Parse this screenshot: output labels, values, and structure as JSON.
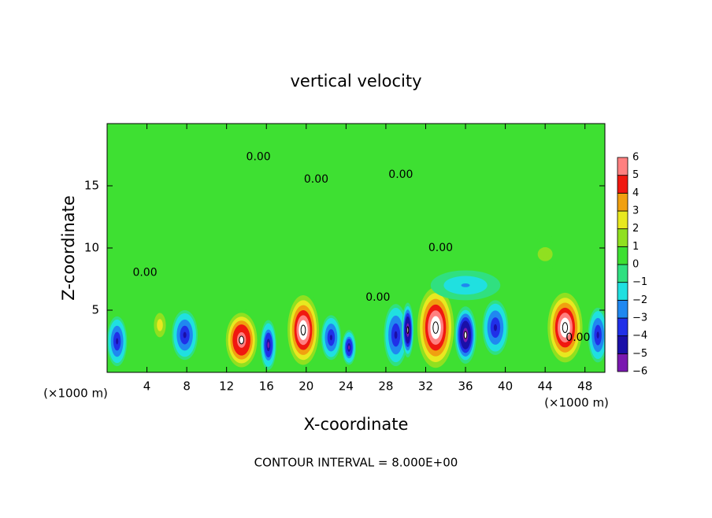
{
  "chart_data": {
    "type": "contour",
    "title": "vertical velocity",
    "x_label": "X-coordinate",
    "y_label": "Z-coordinate",
    "x_unit_left": "(×1000 m)",
    "x_unit_right": "(×1000 m)",
    "footer": "CONTOUR INTERVAL = 8.000E+00",
    "xlim": [
      0,
      50
    ],
    "xticks": [
      4,
      8,
      12,
      16,
      20,
      24,
      28,
      32,
      36,
      40,
      44,
      48
    ],
    "ylim": [
      0,
      20
    ],
    "yticks": [
      5,
      10,
      15
    ],
    "background_color": "#3ee032",
    "colorbar": {
      "levels": [
        -6,
        -5,
        -4,
        -3,
        -2,
        -1,
        0,
        1,
        2,
        3,
        4,
        5,
        6
      ],
      "level_labels": [
        {
          "value": -6,
          "label": "−6"
        },
        {
          "value": -5,
          "label": "−5"
        },
        {
          "value": -4,
          "label": "−4"
        },
        {
          "value": -3,
          "label": "−3"
        },
        {
          "value": -2,
          "label": "−2"
        },
        {
          "value": -1,
          "label": "−1"
        },
        0,
        1,
        2,
        3,
        4,
        5,
        6
      ],
      "colors": [
        "#7a18b0",
        "#1a0fa8",
        "#2030e8",
        "#2088f0",
        "#20e0e0",
        "#30e080",
        "#3ee032",
        "#90e020",
        "#e8e820",
        "#f0a010",
        "#f01810",
        "#ff8080"
      ],
      "over_color": "#ffffff"
    },
    "cells": [
      {
        "x": 1,
        "z": 2.5,
        "w": 2,
        "h": 4,
        "value": -4
      },
      {
        "x": 5.3,
        "z": 3.8,
        "w": 1.6,
        "h": 2.6,
        "value": 3
      },
      {
        "x": 7.8,
        "z": 3,
        "w": 2.6,
        "h": 4,
        "value": -4.5
      },
      {
        "x": 13.5,
        "z": 2.6,
        "w": 3.6,
        "h": 5,
        "value": 6.5
      },
      {
        "x": 16.2,
        "z": 2.2,
        "w": 1.6,
        "h": 4,
        "value": -5
      },
      {
        "x": 19.7,
        "z": 3.4,
        "w": 3.6,
        "h": 6.4,
        "value": 7
      },
      {
        "x": 22.5,
        "z": 2.8,
        "w": 2,
        "h": 3.6,
        "value": -4
      },
      {
        "x": 24.3,
        "z": 2,
        "w": 1.4,
        "h": 2.8,
        "value": -5
      },
      {
        "x": 29,
        "z": 3,
        "w": 2.4,
        "h": 5,
        "value": -4
      },
      {
        "x": 30.2,
        "z": 3.4,
        "w": 1.2,
        "h": 4.4,
        "value": -6.5
      },
      {
        "x": 33,
        "z": 3.6,
        "w": 4.2,
        "h": 7.4,
        "value": 7
      },
      {
        "x": 36,
        "z": 3,
        "w": 2.2,
        "h": 4.6,
        "value": -6.5
      },
      {
        "x": 39,
        "z": 3.6,
        "w": 2.6,
        "h": 4.4,
        "value": -4
      },
      {
        "x": 46,
        "z": 3.6,
        "w": 4,
        "h": 6.4,
        "value": 7
      },
      {
        "x": 49.3,
        "z": 3,
        "w": 2,
        "h": 4.4,
        "value": -4
      },
      {
        "x": 44,
        "z": 9.5,
        "w": 4,
        "h": 3,
        "value": 1.5
      },
      {
        "x": 36,
        "z": 7,
        "w": 7,
        "h": 2.4,
        "value": -2
      }
    ],
    "contour_labels": [
      {
        "x": 15.2,
        "z": 17.3,
        "text": "0.00"
      },
      {
        "x": 21,
        "z": 15.5,
        "text": "0.00"
      },
      {
        "x": 29.5,
        "z": 15.9,
        "text": "0.00"
      },
      {
        "x": 33.5,
        "z": 10,
        "text": "0.00"
      },
      {
        "x": 3.8,
        "z": 8,
        "text": "0.00"
      },
      {
        "x": 27.2,
        "z": 6,
        "text": "0.00"
      },
      {
        "x": 47.3,
        "z": 2.8,
        "text": "0.00"
      }
    ]
  }
}
